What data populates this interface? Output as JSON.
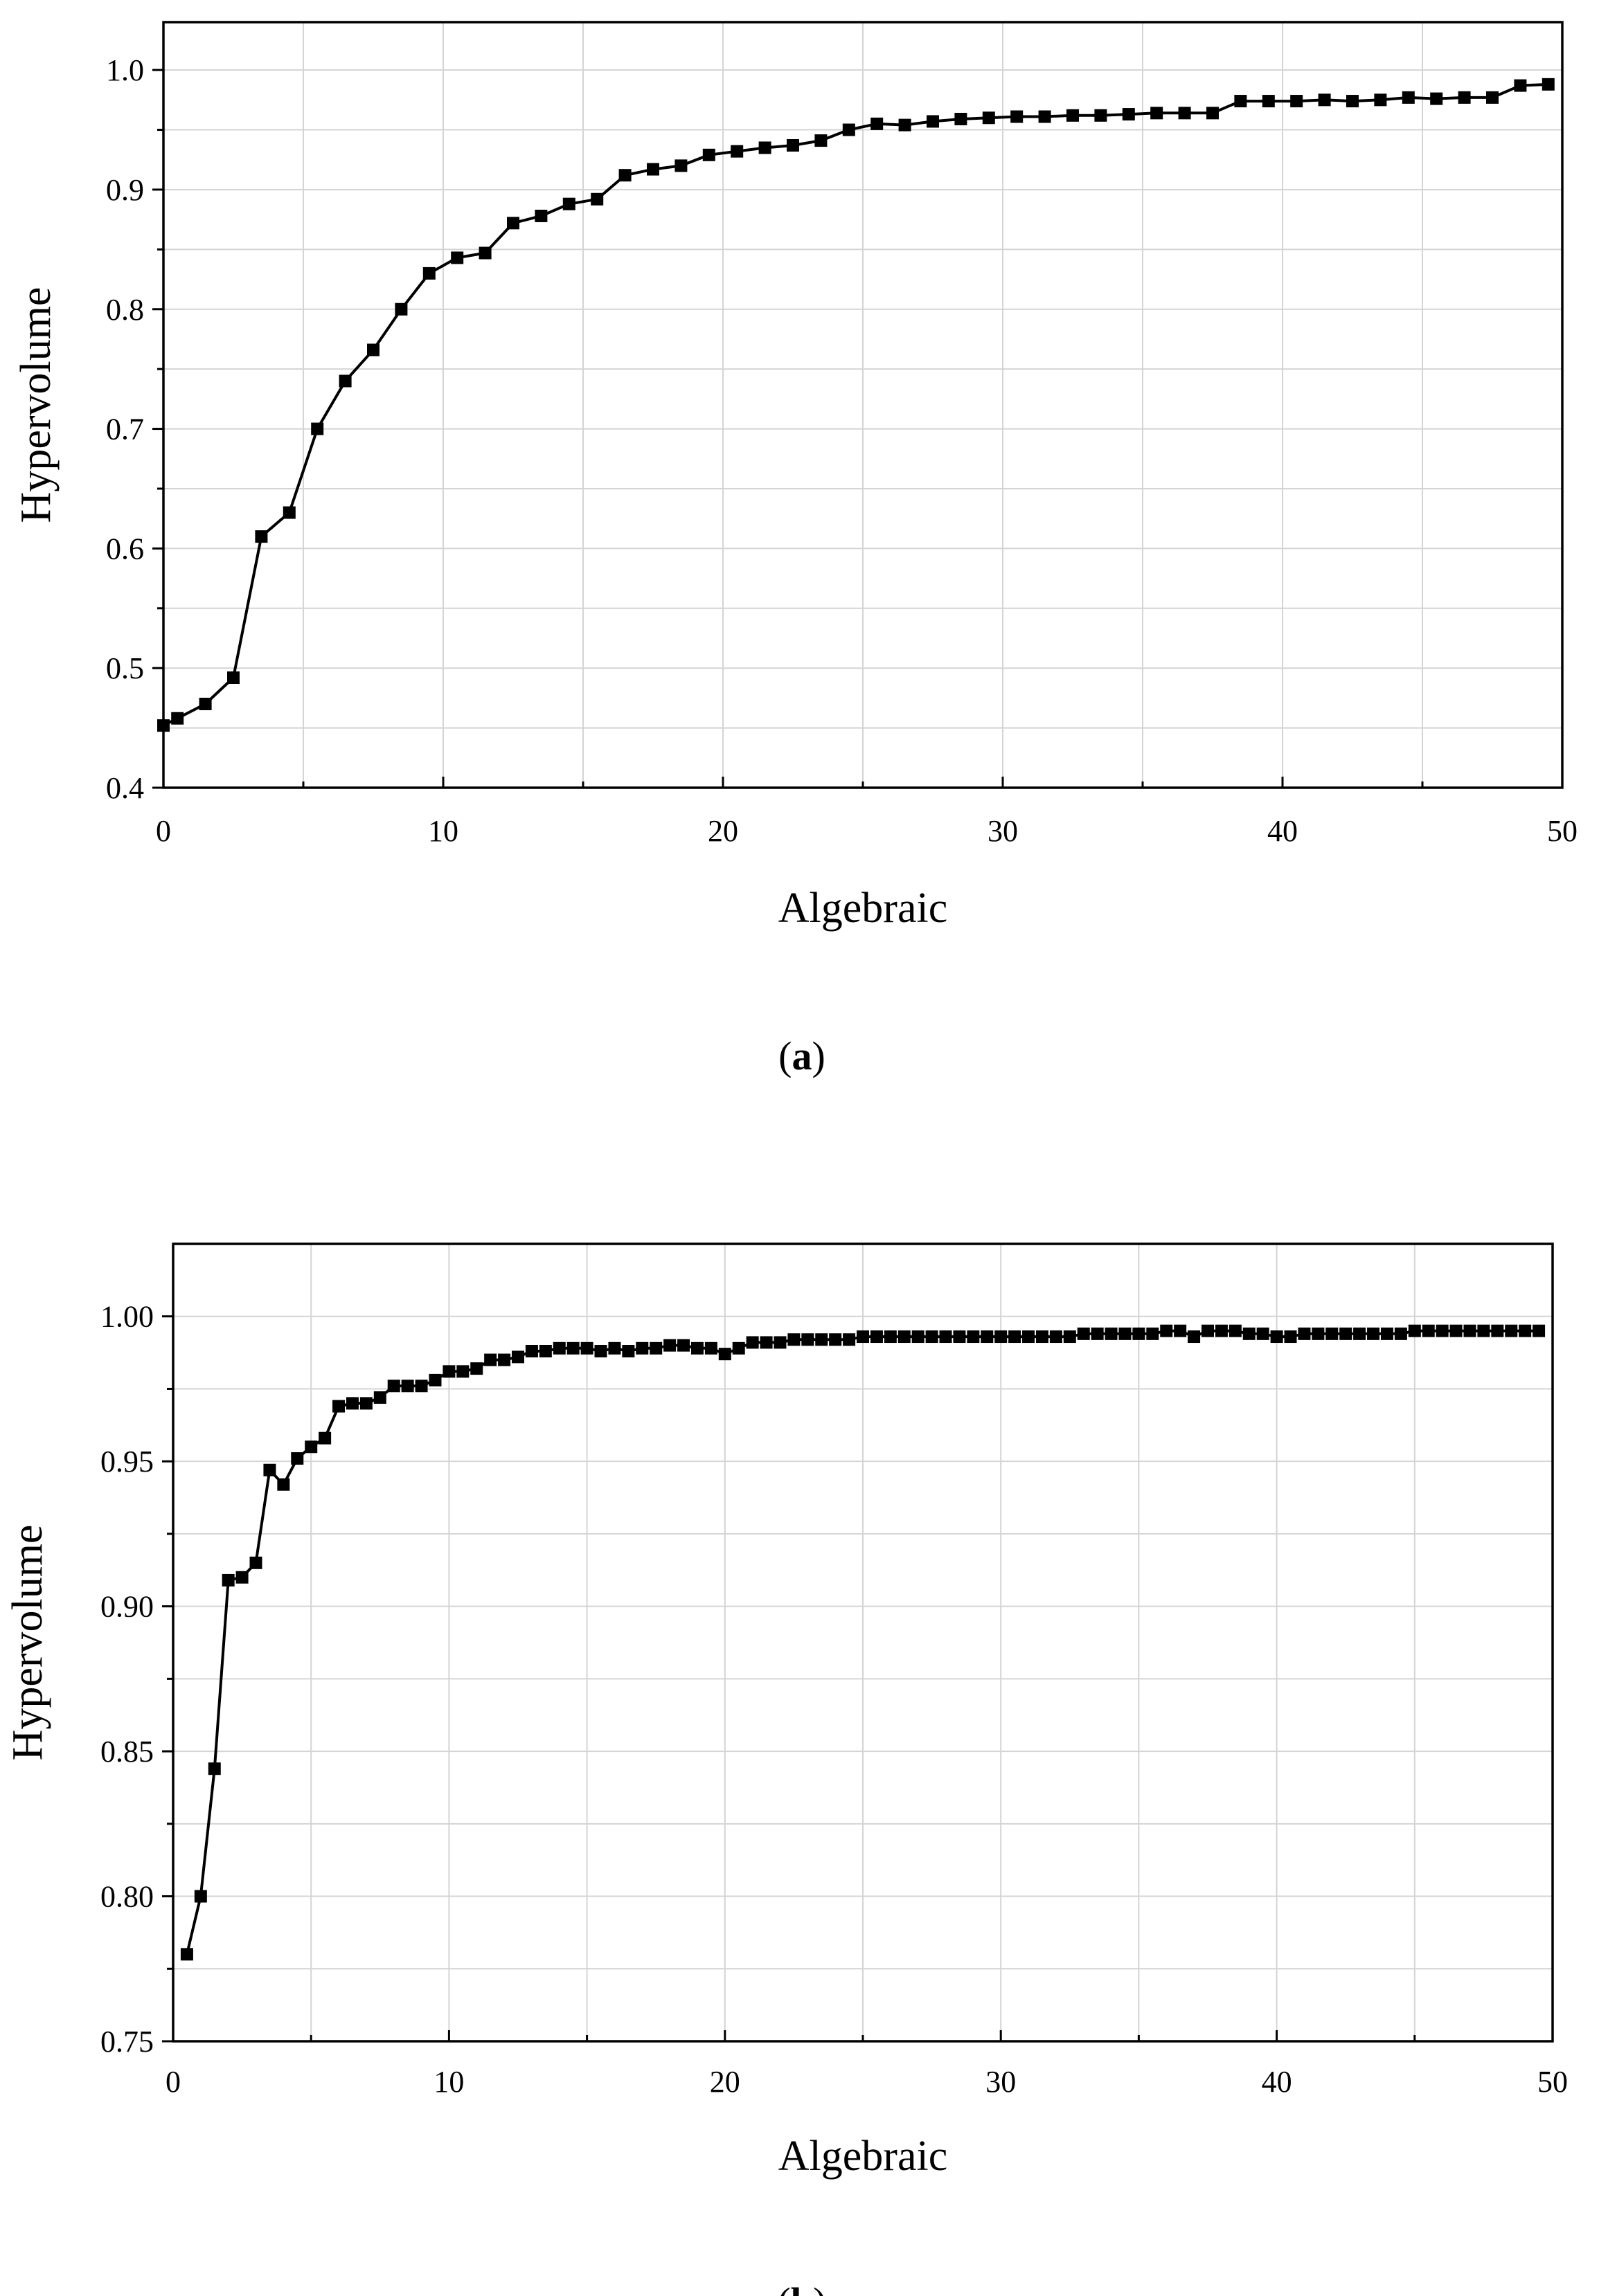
{
  "chart_data": [
    {
      "type": "line",
      "panel_label": {
        "open": "(",
        "letter": "a",
        "close": ")"
      },
      "xlabel": "Algebraic",
      "ylabel": "Hypervolume",
      "xlim": [
        0,
        50
      ],
      "ylim": [
        0.4,
        1.04
      ],
      "xticks": [
        0,
        10,
        20,
        30,
        40,
        50
      ],
      "yticks": [
        0.4,
        0.5,
        0.6,
        0.7,
        0.8,
        0.9,
        1.0
      ],
      "xtick_labels": [
        "0",
        "10",
        "20",
        "30",
        "40",
        "50"
      ],
      "ytick_labels": [
        "0.4",
        "0.5",
        "0.6",
        "0.7",
        "0.8",
        "0.9",
        "1.0"
      ],
      "grid": true,
      "marker": "square",
      "series": [
        {
          "x": [
            0,
            0.5,
            1.5,
            2.5,
            3.5,
            4.5,
            5.5,
            6.5,
            7.5,
            8.5,
            9.5,
            10.5,
            11.5,
            12.5,
            13.5,
            14.5,
            15.5,
            16.5,
            17.5,
            18.5,
            19.5,
            20.5,
            21.5,
            22.5,
            23.5,
            24.5,
            25.5,
            26.5,
            27.5,
            28.5,
            29.5,
            30.5,
            31.5,
            32.5,
            33.5,
            34.5,
            35.5,
            36.5,
            37.5,
            38.5,
            39.5,
            40.5,
            41.5,
            42.5,
            43.5,
            44.5,
            45.5,
            46.5,
            47.5,
            48.5,
            49.5
          ],
          "y": [
            0.452,
            0.458,
            0.47,
            0.492,
            0.61,
            0.63,
            0.7,
            0.74,
            0.766,
            0.8,
            0.83,
            0.843,
            0.847,
            0.872,
            0.878,
            0.888,
            0.892,
            0.912,
            0.917,
            0.92,
            0.929,
            0.932,
            0.935,
            0.937,
            0.941,
            0.95,
            0.955,
            0.954,
            0.957,
            0.959,
            0.96,
            0.961,
            0.961,
            0.962,
            0.962,
            0.963,
            0.964,
            0.964,
            0.964,
            0.974,
            0.974,
            0.974,
            0.975,
            0.974,
            0.975,
            0.977,
            0.976,
            0.977,
            0.977,
            0.987,
            0.988
          ]
        }
      ]
    },
    {
      "type": "line",
      "panel_label": {
        "open": "(",
        "letter": "b",
        "close": ")"
      },
      "xlabel": "Algebraic",
      "ylabel": "Hypervolume",
      "xlim": [
        0,
        50
      ],
      "ylim": [
        0.75,
        1.025
      ],
      "xticks": [
        0,
        10,
        20,
        30,
        40,
        50
      ],
      "yticks": [
        0.75,
        0.8,
        0.85,
        0.9,
        0.95,
        1.0
      ],
      "xtick_labels": [
        "0",
        "10",
        "20",
        "30",
        "40",
        "50"
      ],
      "ytick_labels": [
        "0.75",
        "0.80",
        "0.85",
        "0.90",
        "0.95",
        "1.00"
      ],
      "grid": true,
      "marker": "square",
      "series": [
        {
          "x": [
            0.5,
            1.0,
            1.5,
            2.0,
            2.5,
            3.0,
            3.5,
            4.0,
            4.5,
            5.0,
            5.5,
            6.0,
            6.5,
            7.0,
            7.5,
            8.0,
            8.5,
            9.0,
            9.5,
            10.0,
            10.5,
            11.0,
            11.5,
            12.0,
            12.5,
            13.0,
            13.5,
            14.0,
            14.5,
            15.0,
            15.5,
            16.0,
            16.5,
            17.0,
            17.5,
            18.0,
            18.5,
            19.0,
            19.5,
            20.0,
            20.5,
            21.0,
            21.5,
            22.0,
            22.5,
            23.0,
            23.5,
            24.0,
            24.5,
            25.0,
            25.5,
            26.0,
            26.5,
            27.0,
            27.5,
            28.0,
            28.5,
            29.0,
            29.5,
            30.0,
            30.5,
            31.0,
            31.5,
            32.0,
            32.5,
            33.0,
            33.5,
            34.0,
            34.5,
            35.0,
            35.5,
            36.0,
            36.5,
            37.0,
            37.5,
            38.0,
            38.5,
            39.0,
            39.5,
            40.0,
            40.5,
            41.0,
            41.5,
            42.0,
            42.5,
            43.0,
            43.5,
            44.0,
            44.5,
            45.0,
            45.5,
            46.0,
            46.5,
            47.0,
            47.5,
            48.0,
            48.5,
            49.0,
            49.5
          ],
          "y": [
            0.78,
            0.8,
            0.844,
            0.909,
            0.91,
            0.915,
            0.947,
            0.942,
            0.951,
            0.955,
            0.958,
            0.969,
            0.97,
            0.97,
            0.972,
            0.976,
            0.976,
            0.976,
            0.978,
            0.981,
            0.981,
            0.982,
            0.985,
            0.985,
            0.986,
            0.988,
            0.988,
            0.989,
            0.989,
            0.989,
            0.988,
            0.989,
            0.988,
            0.989,
            0.989,
            0.99,
            0.99,
            0.989,
            0.989,
            0.987,
            0.989,
            0.991,
            0.991,
            0.991,
            0.992,
            0.992,
            0.992,
            0.992,
            0.992,
            0.993,
            0.993,
            0.993,
            0.993,
            0.993,
            0.993,
            0.993,
            0.993,
            0.993,
            0.993,
            0.993,
            0.993,
            0.993,
            0.993,
            0.993,
            0.993,
            0.994,
            0.994,
            0.994,
            0.994,
            0.994,
            0.994,
            0.995,
            0.995,
            0.993,
            0.995,
            0.995,
            0.995,
            0.994,
            0.994,
            0.993,
            0.993,
            0.994,
            0.994,
            0.994,
            0.994,
            0.994,
            0.994,
            0.994,
            0.994,
            0.995,
            0.995,
            0.995,
            0.995,
            0.995,
            0.995,
            0.995,
            0.995,
            0.995,
            0.995
          ]
        }
      ]
    }
  ]
}
